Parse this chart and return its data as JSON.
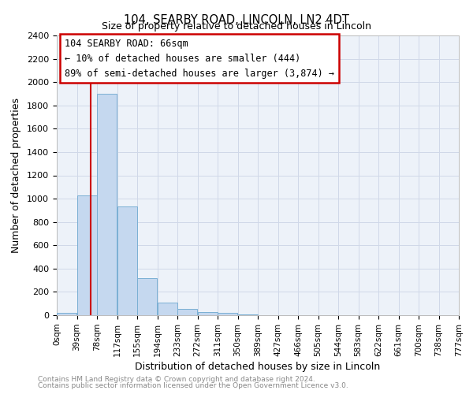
{
  "title": "104, SEARBY ROAD, LINCOLN, LN2 4DT",
  "subtitle": "Size of property relative to detached houses in Lincoln",
  "xlabel": "Distribution of detached houses by size in Lincoln",
  "ylabel": "Number of detached properties",
  "bin_labels": [
    "0sqm",
    "39sqm",
    "78sqm",
    "117sqm",
    "155sqm",
    "194sqm",
    "233sqm",
    "272sqm",
    "311sqm",
    "350sqm",
    "389sqm",
    "427sqm",
    "466sqm",
    "505sqm",
    "544sqm",
    "583sqm",
    "622sqm",
    "661sqm",
    "700sqm",
    "738sqm",
    "777sqm"
  ],
  "bar_heights": [
    20,
    1025,
    1900,
    930,
    320,
    105,
    55,
    30,
    20,
    10,
    0,
    0,
    0,
    0,
    0,
    0,
    0,
    0,
    0,
    0
  ],
  "bar_color": "#c5d8ef",
  "bar_edge_color": "#7aafd4",
  "red_line_x": 66,
  "bin_width": 39,
  "ylim": [
    0,
    2400
  ],
  "yticks": [
    0,
    200,
    400,
    600,
    800,
    1000,
    1200,
    1400,
    1600,
    1800,
    2000,
    2200,
    2400
  ],
  "annotation_title": "104 SEARBY ROAD: 66sqm",
  "annotation_line1": "← 10% of detached houses are smaller (444)",
  "annotation_line2": "89% of semi-detached houses are larger (3,874) →",
  "annotation_box_color": "#ffffff",
  "annotation_box_edge": "#cc0000",
  "footer1": "Contains HM Land Registry data © Crown copyright and database right 2024.",
  "footer2": "Contains public sector information licensed under the Open Government Licence v3.0.",
  "grid_color": "#d0d8e8",
  "background_color": "#ffffff",
  "plot_bg_color": "#edf2f9"
}
